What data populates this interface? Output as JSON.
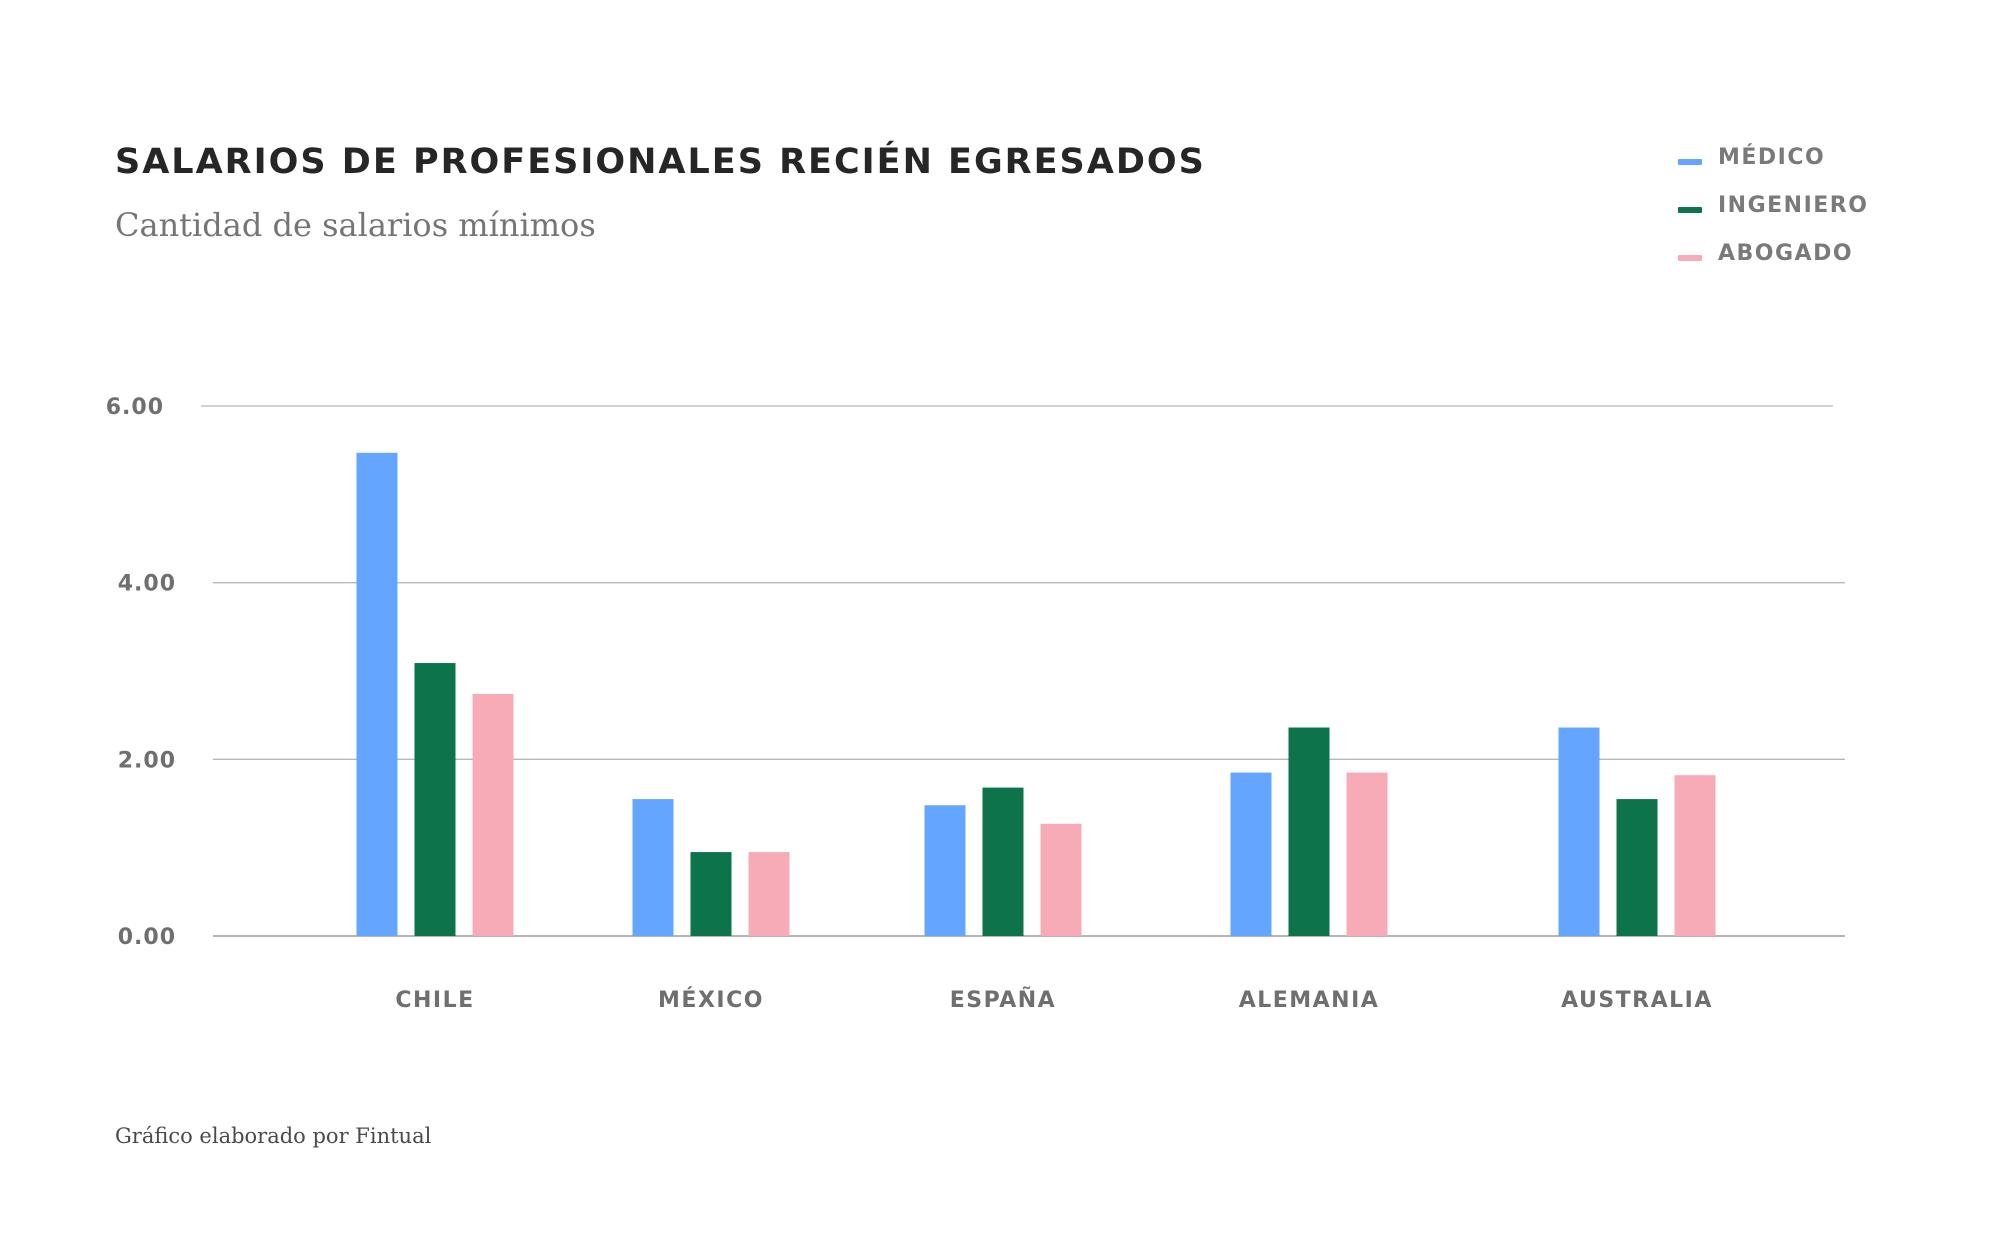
{
  "chart_data": {
    "type": "bar",
    "title": "SALARIOS DE PROFESIONALES RECIÉN EGRESADOS",
    "subtitle": "Cantidad de salarios mínimos",
    "footer": "Gráfico elaborado por Fintual",
    "categories": [
      "CHILE",
      "MÉXICO",
      "ESPAÑA",
      "ALEMANIA",
      "AUSTRALIA"
    ],
    "series": [
      {
        "name": "MÉDICO",
        "color": "#64a5ff",
        "values": [
          5.47,
          1.55,
          1.48,
          1.85,
          2.36
        ]
      },
      {
        "name": "INGENIERO",
        "color": "#0d734a",
        "values": [
          3.09,
          0.95,
          1.68,
          2.36,
          1.55
        ]
      },
      {
        "name": "ABOGADO",
        "color": "#f6abb6",
        "values": [
          2.74,
          0.95,
          1.27,
          1.85,
          1.82
        ]
      }
    ],
    "ylim": [
      0,
      6
    ],
    "yticks": [
      "0.00",
      "2.00",
      "4.00",
      "6.00"
    ],
    "ytick_values": [
      0,
      2,
      4,
      6
    ],
    "grid": true,
    "legend_position": "top-right"
  }
}
